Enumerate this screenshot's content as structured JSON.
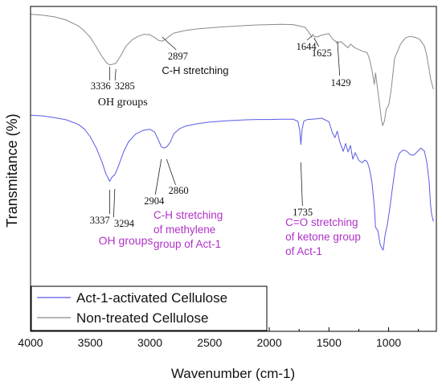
{
  "chart_data": {
    "type": "line",
    "xlabel": "Wavenumber (cm-1)",
    "ylabel": "Transmitance (%)",
    "xlim": [
      4000,
      600
    ],
    "x_reversed": true,
    "xticks": [
      4000,
      3500,
      3000,
      2500,
      2000,
      1500,
      1000
    ],
    "ylim": [
      0,
      100
    ],
    "yticks_shown": false,
    "legend_position": "bottom-left",
    "colors": {
      "blue": "#5a5ae6",
      "gray": "#8a8a8a",
      "purple": "#b031c8",
      "text": "#111111"
    },
    "series": [
      {
        "name": "Non-treated Cellulose",
        "color": "#8a8a8a",
        "x": [
          3995,
          3900,
          3800,
          3700,
          3600,
          3550,
          3500,
          3450,
          3400,
          3360,
          3336,
          3310,
          3285,
          3250,
          3200,
          3150,
          3100,
          3050,
          3000,
          2960,
          2930,
          2897,
          2870,
          2840,
          2800,
          2700,
          2600,
          2500,
          2400,
          2300,
          2200,
          2100,
          2000,
          1900,
          1800,
          1750,
          1700,
          1660,
          1644,
          1635,
          1625,
          1600,
          1560,
          1500,
          1470,
          1450,
          1429,
          1400,
          1370,
          1340,
          1320,
          1280,
          1250,
          1210,
          1180,
          1160,
          1140,
          1120,
          1110,
          1080,
          1060,
          1050,
          1035,
          1020,
          1000,
          980,
          950,
          900,
          860,
          820,
          780,
          740,
          700,
          680,
          660,
          650,
          640,
          625
        ],
        "y": [
          97.6,
          97.3,
          96.8,
          95.8,
          94.0,
          92.5,
          90.5,
          87.6,
          84.5,
          82.5,
          82.0,
          82.2,
          82.5,
          84.5,
          87.8,
          89.7,
          90.8,
          91.4,
          91.3,
          90.4,
          89.6,
          89.3,
          89.8,
          90.8,
          91.8,
          92.6,
          93.1,
          93.4,
          93.7,
          93.9,
          94.1,
          94.3,
          94.4,
          94.5,
          94.4,
          94.0,
          93.6,
          91.6,
          90.6,
          91.4,
          90.8,
          90.6,
          91.2,
          91.6,
          90.0,
          89.4,
          88.7,
          89.2,
          88.2,
          87.3,
          88.4,
          87.2,
          86.7,
          86.1,
          85.8,
          83.8,
          80.5,
          76.0,
          79.5,
          71.0,
          65.0,
          63.3,
          64.8,
          68.4,
          69.5,
          74.0,
          84.0,
          88.4,
          90.3,
          90.8,
          90.5,
          89.9,
          87.8,
          84.8,
          80.5,
          78.0,
          76.5,
          74.5
        ]
      },
      {
        "name": "Act-1-activated Cellulose",
        "color": "#5a5ae6",
        "x": [
          3995,
          3900,
          3800,
          3700,
          3600,
          3550,
          3500,
          3450,
          3400,
          3370,
          3337,
          3315,
          3294,
          3260,
          3220,
          3180,
          3120,
          3060,
          3000,
          2960,
          2930,
          2904,
          2885,
          2860,
          2830,
          2800,
          2750,
          2700,
          2600,
          2500,
          2400,
          2300,
          2200,
          2100,
          2000,
          1900,
          1800,
          1760,
          1745,
          1735,
          1725,
          1710,
          1680,
          1600,
          1560,
          1500,
          1470,
          1450,
          1430,
          1410,
          1380,
          1360,
          1340,
          1320,
          1300,
          1280,
          1250,
          1220,
          1200,
          1180,
          1160,
          1140,
          1120,
          1110,
          1090,
          1070,
          1055,
          1045,
          1030,
          1010,
          990,
          970,
          940,
          910,
          880,
          850,
          820,
          790,
          760,
          730,
          700,
          680,
          660,
          650,
          640,
          625
        ],
        "y": [
          66.5,
          66.3,
          65.8,
          65.1,
          63.7,
          62.3,
          59.9,
          56.5,
          52.0,
          48.6,
          46.2,
          47.6,
          48.2,
          51.2,
          55.3,
          58.3,
          60.7,
          61.8,
          62.2,
          61.3,
          59.0,
          56.8,
          56.4,
          56.7,
          58.2,
          60.8,
          62.4,
          63.2,
          63.9,
          64.4,
          64.7,
          64.9,
          65.1,
          65.2,
          65.2,
          65.3,
          65.3,
          64.6,
          62.0,
          57.5,
          62.2,
          64.7,
          65.2,
          65.4,
          65.6,
          64.5,
          61.0,
          59.6,
          61.6,
          58.4,
          55.4,
          57.8,
          55.2,
          57.2,
          53.0,
          55.0,
          52.6,
          51.9,
          52.7,
          52.2,
          50.0,
          46.0,
          38.5,
          32.0,
          31.0,
          26.6,
          25.5,
          25.0,
          29.5,
          33.0,
          38.0,
          43.5,
          51.5,
          54.8,
          55.8,
          55.5,
          54.4,
          54.2,
          55.3,
          56.4,
          55.5,
          52.0,
          45.8,
          39.4,
          36.0,
          33.8
        ]
      }
    ],
    "annotations": [
      {
        "id": "a3336",
        "text": "3336",
        "color": "text"
      },
      {
        "id": "a3285",
        "text": "3285",
        "color": "text"
      },
      {
        "id": "oh_top",
        "text": "OH groups",
        "color": "text"
      },
      {
        "id": "a2897",
        "text": "2897",
        "color": "text"
      },
      {
        "id": "ch_top",
        "text": "C-H stretching",
        "color": "text"
      },
      {
        "id": "a1644",
        "text": "1644",
        "color": "text"
      },
      {
        "id": "a1625",
        "text": "1625",
        "color": "text"
      },
      {
        "id": "a1429",
        "text": "1429",
        "color": "text"
      },
      {
        "id": "a3337",
        "text": "3337",
        "color": "text"
      },
      {
        "id": "a3294",
        "text": "3294",
        "color": "text"
      },
      {
        "id": "a2904",
        "text": "2904",
        "color": "text"
      },
      {
        "id": "a2860",
        "text": "2860",
        "color": "text"
      },
      {
        "id": "a1735",
        "text": "1735",
        "color": "text"
      },
      {
        "id": "oh_bot",
        "text": "OH groups",
        "color": "purple"
      },
      {
        "id": "ch_bot1",
        "text": "C-H stretching",
        "color": "purple"
      },
      {
        "id": "ch_bot2",
        "text": "of methylene",
        "color": "purple"
      },
      {
        "id": "ch_bot3",
        "text": "group of Act-1",
        "color": "purple"
      },
      {
        "id": "co_1",
        "text": "C=O stretching",
        "color": "purple"
      },
      {
        "id": "co_2",
        "text": "of ketone group",
        "color": "purple"
      },
      {
        "id": "co_3",
        "text": "of Act-1",
        "color": "purple"
      }
    ],
    "legend": [
      {
        "label": "Act-1-activated Cellulose",
        "color": "#5a5ae6"
      },
      {
        "label": "Non-treated Cellulose",
        "color": "#8a8a8a"
      }
    ]
  }
}
